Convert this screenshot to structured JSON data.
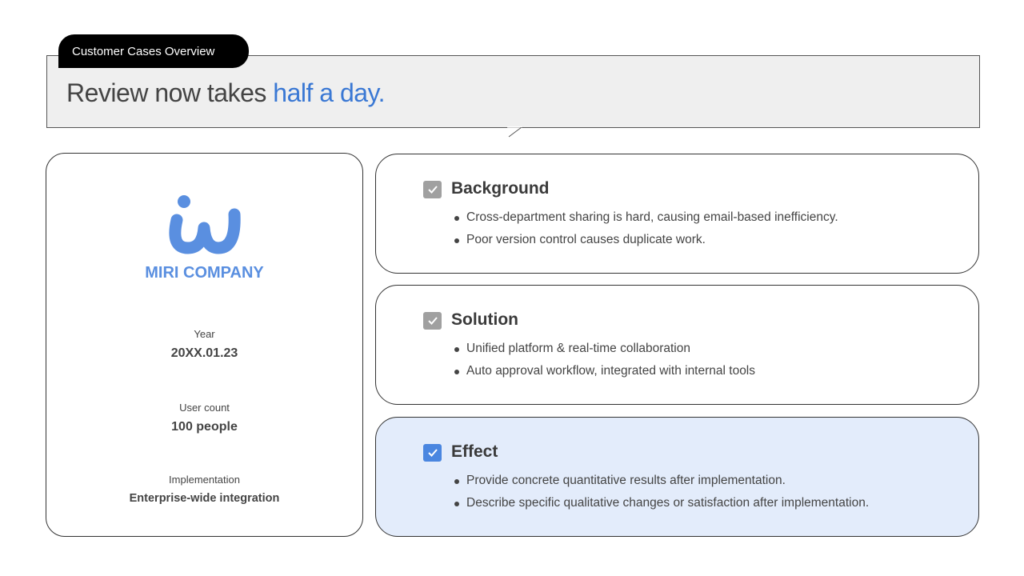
{
  "header": {
    "tab_label": "Customer Cases Overview",
    "title_prefix": "Review now takes ",
    "title_highlight": "half a day."
  },
  "company": {
    "logo": "miri-w-logo",
    "name": "MIRI COMPANY",
    "info": [
      {
        "label": "Year",
        "value": "20XX.01.23"
      },
      {
        "label": "User count",
        "value": "100 people"
      },
      {
        "label": "Implementation",
        "value": "Enterprise-wide integration"
      }
    ]
  },
  "sections": [
    {
      "title": "Background",
      "checked": true,
      "bullets": [
        "Cross-department  sharing is hard, causing email-based  inefficiency.",
        "Poor version control causes duplicate work."
      ]
    },
    {
      "title": "Solution",
      "checked": true,
      "bullets": [
        "Unified platform & real-time collaboration",
        "Auto approval workflow, integrated with internal tools"
      ]
    },
    {
      "title": "Effect",
      "checked": true,
      "highlighted": true,
      "bullets": [
        "Provide concrete quantitative results after implementation.",
        "Describe specific qualitative changes or satisfaction after implementation."
      ]
    }
  ],
  "colors": {
    "accent": "#3a78d4",
    "logo": "#5a8fe0",
    "highlight_bg": "#e3ecfb",
    "checkbox_active": "#4a86e0",
    "checkbox_default": "#a0a0a0"
  }
}
